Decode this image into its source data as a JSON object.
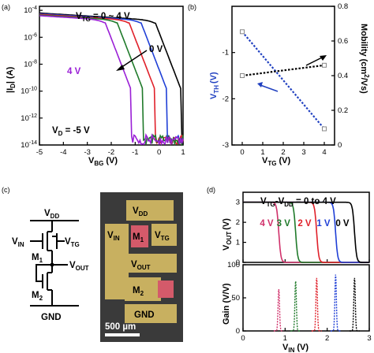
{
  "colors": {
    "v0": "#000000",
    "v1": "#1f3fd6",
    "v2": "#e0202a",
    "v3": "#1f7a2a",
    "v4": "#9a1fd6",
    "vth": "#2040c0",
    "pink": "#d0306a",
    "photo_bg": "#3a3a3a",
    "pad": "#c8b060"
  },
  "panels": {
    "a": "(a)",
    "b": "(b)",
    "c": "(c)",
    "d": "(d)"
  },
  "chart_data": [
    {
      "id": "a",
      "type": "line",
      "xlabel": "V",
      "xlabel_sub": "BG",
      "xlabel_unit": "(V)",
      "ylabel": "|I",
      "ylabel_sub": "D",
      "ylabel_unit": "| (A)",
      "xlim": [
        -5,
        1
      ],
      "ylim_exp": [
        -14,
        -3.7
      ],
      "log_y": true,
      "x_ticks": [
        "-5",
        "-4",
        "-3",
        "-2",
        "-1",
        "0",
        "1"
      ],
      "y_tick_labels": [
        {
          "base": "10",
          "exp": "-4"
        },
        {
          "base": "10",
          "exp": "-6"
        },
        {
          "base": "10",
          "exp": "-8"
        },
        {
          "base": "10",
          "exp": "-10"
        },
        {
          "base": "10",
          "exp": "-12"
        },
        {
          "base": "10",
          "exp": "-14"
        }
      ],
      "annotations": {
        "vtg": "V",
        "vtg_sub": "TG",
        "vtg_rest": " = 0 ~ 4 V",
        "vd": "V",
        "vd_sub": "D",
        "vd_rest": " = -5 V",
        "label_0v": "0 V",
        "label_4v": "4 V"
      },
      "series": [
        {
          "name": "0 V",
          "color_key": "v0",
          "vth": 0.1
        },
        {
          "name": "1 V",
          "color_key": "v1",
          "vth": -0.5
        },
        {
          "name": "2 V",
          "color_key": "v2",
          "vth": -1.0
        },
        {
          "name": "3 V",
          "color_key": "v3",
          "vth": -1.5
        },
        {
          "name": "4 V",
          "color_key": "v4",
          "vth": -2.0
        }
      ]
    },
    {
      "id": "b",
      "type": "line",
      "xlabel": "V",
      "xlabel_sub": "TG",
      "xlabel_unit": "(V)",
      "ylabel_left": "V",
      "ylabel_left_sub": "TH",
      "ylabel_left_unit": "(V)",
      "ylabel_right": "Mobility",
      "ylabel_right_unit": "(cm",
      "ylabel_right_sup": "2",
      "ylabel_right_end": "/Vs)",
      "xlim": [
        -0.5,
        4.5
      ],
      "ylim_left": [
        -3,
        0
      ],
      "ylim_right": [
        0,
        0.8
      ],
      "x_ticks": [
        "0",
        "1",
        "2",
        "3",
        "4"
      ],
      "y_left_ticks": [
        "-1",
        "-2",
        "-3"
      ],
      "y_right_ticks": [
        "0.8",
        "0.6",
        "0.4",
        "0.2",
        "0"
      ],
      "series": [
        {
          "axis": "left",
          "color_key": "vth",
          "x": [
            0,
            4
          ],
          "y": [
            -0.55,
            -2.65
          ]
        },
        {
          "axis": "right",
          "color_key": "v0",
          "x": [
            0,
            4
          ],
          "y": [
            0.4,
            0.46
          ]
        }
      ]
    },
    {
      "id": "d_top",
      "type": "line",
      "ylabel": "V",
      "ylabel_sub": "OUT",
      "ylabel_unit": "(V)",
      "xlim": [
        0,
        3
      ],
      "ylim": [
        0,
        3.5
      ],
      "y_ticks": [
        "3",
        "2",
        "1",
        "0"
      ],
      "annotation": {
        "a": "V",
        "a_sub": "TG",
        "b": "-V",
        "b_sub": "DD",
        "rest": " = 0 to 4 V"
      },
      "series": [
        {
          "name": "4 V",
          "color_key": "pink",
          "switch": 0.85
        },
        {
          "name": "3 V",
          "color_key": "v3",
          "switch": 1.25
        },
        {
          "name": "2 V",
          "color_key": "v2",
          "switch": 1.75
        },
        {
          "name": "1 V",
          "color_key": "v1",
          "switch": 2.2
        },
        {
          "name": "0 V",
          "color_key": "v0",
          "switch": 2.65
        }
      ]
    },
    {
      "id": "d_bottom",
      "type": "line",
      "ylabel": "Gain (V/V)",
      "xlabel": "V",
      "xlabel_sub": "IN",
      "xlabel_unit": "(V)",
      "xlim": [
        0,
        3
      ],
      "ylim": [
        0,
        100
      ],
      "x_ticks": [
        "0",
        "1",
        "2",
        "3"
      ],
      "y_ticks": [
        "100",
        "50",
        "0"
      ],
      "series": [
        {
          "color_key": "pink",
          "center": 0.85,
          "peak": 63
        },
        {
          "color_key": "v3",
          "center": 1.25,
          "peak": 75
        },
        {
          "color_key": "v2",
          "center": 1.75,
          "peak": 80
        },
        {
          "color_key": "v1",
          "center": 2.2,
          "peak": 85
        },
        {
          "color_key": "v0",
          "center": 2.65,
          "peak": 80
        }
      ]
    }
  ],
  "circuit": {
    "vdd": "V",
    "vdd_sub": "DD",
    "vin": "V",
    "vin_sub": "IN",
    "vtg": "V",
    "vtg_sub": "TG",
    "m1": "M",
    "m1_sub": "1",
    "m2": "M",
    "m2_sub": "2",
    "vout": "V",
    "vout_sub": "OUT",
    "gnd": "GND"
  },
  "photo": {
    "vdd": "V",
    "vdd_sub": "DD",
    "vin": "V",
    "vin_sub": "IN",
    "m1": "M",
    "m1_sub": "1",
    "vtg": "V",
    "vtg_sub": "TG",
    "vout": "V",
    "vout_sub": "OUT",
    "m2": "M",
    "m2_sub": "2",
    "gnd": "GND",
    "scale": "500 µm"
  }
}
